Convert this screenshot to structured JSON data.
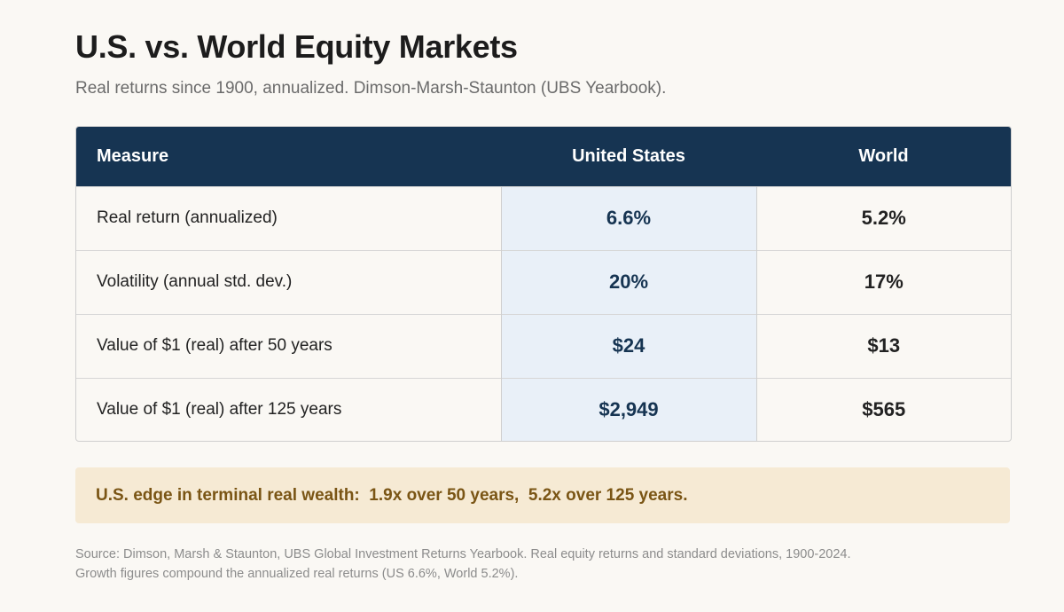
{
  "header": {
    "title": "U.S. vs. World Equity Markets",
    "subtitle": "Real returns since 1900, annualized. Dimson-Marsh-Staunton (UBS Yearbook)."
  },
  "table": {
    "columns": [
      "Measure",
      "United States",
      "World"
    ],
    "rows": [
      {
        "measure": "Real return (annualized)",
        "us": "6.6%",
        "world": "5.2%"
      },
      {
        "measure": "Volatility (annual std. dev.)",
        "us": "20%",
        "world": "17%"
      },
      {
        "measure": "Value of $1 (real) after 50 years",
        "us": "$24",
        "world": "$13"
      },
      {
        "measure": "Value of $1 (real) after 125 years",
        "us": "$2,949",
        "world": "$565"
      }
    ]
  },
  "callout": {
    "text": "U.S. edge in terminal real wealth:  1.9x over 50 years,  5.2x over 125 years."
  },
  "footer": {
    "source_line1": "Source: Dimson, Marsh & Staunton, UBS Global Investment Returns Yearbook. Real equity returns and standard deviations, 1900-2024.",
    "source_line2": "Growth figures compound the annualized real returns (US 6.6%, World 5.2%)."
  },
  "colors": {
    "header_bg": "#163452",
    "us_column_bg": "#e9f0f8",
    "callout_bg": "#f6ead4",
    "callout_text": "#7a5515"
  },
  "chart_data": {
    "type": "table",
    "title": "U.S. vs. World Equity Markets",
    "subtitle": "Real returns since 1900, annualized. Dimson-Marsh-Staunton (UBS Yearbook).",
    "columns": [
      "Measure",
      "United States",
      "World"
    ],
    "rows": [
      [
        "Real return (annualized)",
        "6.6%",
        "5.2%"
      ],
      [
        "Volatility (annual std. dev.)",
        "20%",
        "17%"
      ],
      [
        "Value of $1 (real) after 50 years",
        "$24",
        "$13"
      ],
      [
        "Value of $1 (real) after 125 years",
        "$2,949",
        "$565"
      ]
    ]
  }
}
